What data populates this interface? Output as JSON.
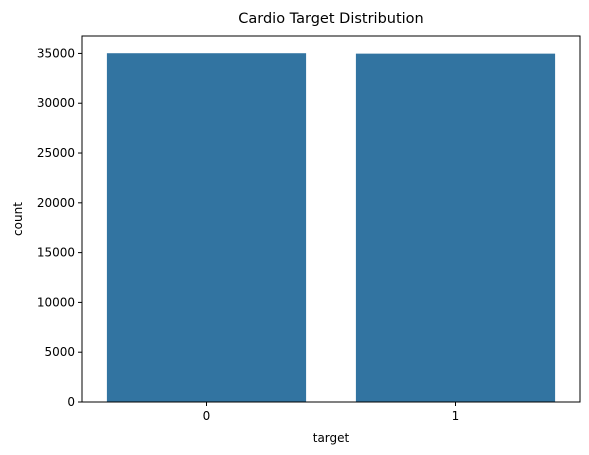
{
  "chart_data": {
    "type": "bar",
    "title": "Cardio Target Distribution",
    "xlabel": "target",
    "ylabel": "count",
    "categories": [
      "0",
      "1"
    ],
    "values": [
      35021,
      34979
    ],
    "ylim": [
      0,
      36750
    ],
    "yticks": [
      0,
      5000,
      10000,
      15000,
      20000,
      25000,
      30000,
      35000
    ],
    "bar_color": "#3274a1",
    "grid": false,
    "legend": "none"
  }
}
